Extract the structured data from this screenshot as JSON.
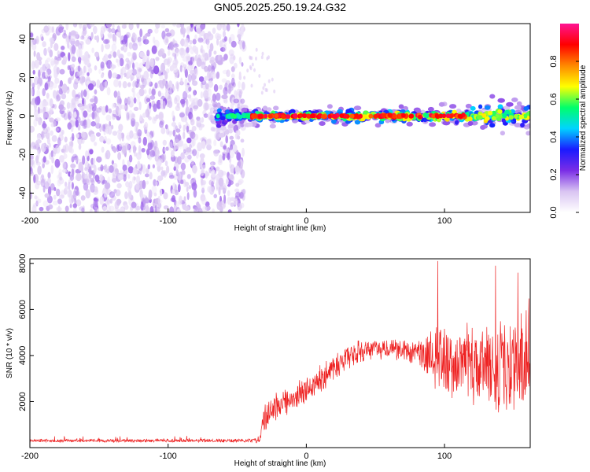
{
  "figure_title": "GN05.2025.250.19.24.G32",
  "colors": {
    "snr_line": "#ee2222",
    "axis": "#000000",
    "background": "#ffffff"
  },
  "chart_data": [
    {
      "type": "heatmap",
      "title": "GN05.2025.250.19.24.G32",
      "xlabel": "Height of straight line (km)",
      "ylabel": "Frequency (Hz)",
      "xlim": [
        -200,
        162
      ],
      "ylim": [
        -50,
        48
      ],
      "xticks": [
        -200,
        -100,
        0,
        100
      ],
      "yticks": [
        -40,
        -20,
        0,
        20,
        40
      ],
      "noise_region_x": [
        -200,
        -45
      ],
      "signal_start_x": -65,
      "signal_frequency_hz": 0,
      "colorbar": {
        "label": "Normalized spectral amplitude",
        "ticks": [
          0.0,
          0.2,
          0.4,
          0.6,
          0.8
        ],
        "range": [
          0,
          1
        ],
        "colormap": [
          "#ffffff",
          "#d9c4f2",
          "#7a2de6",
          "#1a1aff",
          "#00d4ff",
          "#00ff6a",
          "#ffff00",
          "#ff8800",
          "#ff0000",
          "#ff1493"
        ]
      }
    },
    {
      "type": "line",
      "title": "",
      "xlabel": "Height of straight line (km)",
      "ylabel": "SNR (10 * v/v)",
      "xlim": [
        -200,
        162
      ],
      "ylim": [
        0,
        8200
      ],
      "xticks": [
        -200,
        -100,
        0,
        100
      ],
      "yticks": [
        2000,
        4000,
        6000,
        8000
      ],
      "series": [
        {
          "name": "SNR",
          "x": [
            -200,
            -150,
            -100,
            -50,
            -34,
            -30,
            -20,
            -10,
            0,
            10,
            20,
            30,
            40,
            60,
            80,
            90,
            95,
            100,
            110,
            120,
            130,
            140,
            150,
            162
          ],
          "mean": [
            300,
            300,
            300,
            300,
            320,
            1300,
            1900,
            2100,
            2500,
            3000,
            3500,
            3900,
            4200,
            4300,
            4200,
            4100,
            4000,
            3800,
            3700,
            3600,
            3500,
            3500,
            3500,
            4000
          ],
          "spread": [
            80,
            80,
            80,
            90,
            120,
            700,
            650,
            650,
            700,
            700,
            700,
            600,
            550,
            500,
            600,
            1300,
            2000,
            1800,
            1700,
            2000,
            2200,
            2400,
            2500,
            2600
          ]
        }
      ],
      "peak_values": [
        8100,
        7900,
        7600
      ]
    }
  ]
}
